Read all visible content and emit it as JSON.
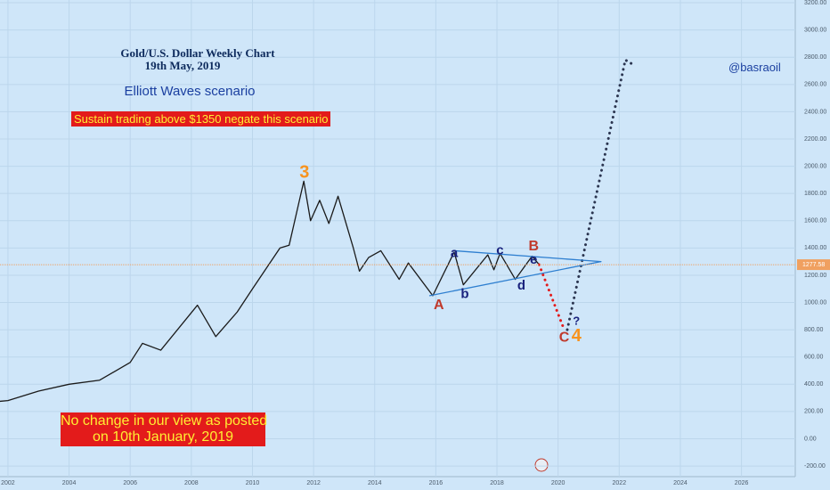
{
  "chart_data": {
    "type": "line",
    "title": "Gold/U.S. Dollar Weekly Chart",
    "date_line": "19th May, 2019",
    "subtitle": "Elliott Waves scenario",
    "warning": "Sustain trading above $1350 negate this scenario",
    "author": "@basraoil",
    "note": [
      "No change in our view as posted",
      "on 10th January, 2019"
    ],
    "xlim": [
      2001.74,
      2027.76
    ],
    "ylim": [
      -278,
      3220
    ],
    "xticks": [
      2002,
      2004,
      2006,
      2008,
      2010,
      2012,
      2014,
      2016,
      2018,
      2020,
      2022,
      2024,
      2026
    ],
    "yticks": [
      {
        "value": -200,
        "label": "-200.00"
      },
      {
        "value": 0,
        "label": "0.00"
      },
      {
        "value": 200,
        "label": "200.00"
      },
      {
        "value": 400,
        "label": "400.00"
      },
      {
        "value": 600,
        "label": "600.00"
      },
      {
        "value": 800,
        "label": "800.00"
      },
      {
        "value": 1000,
        "label": "1000.00"
      },
      {
        "value": 1200,
        "label": "1200.00"
      },
      {
        "value": 1400,
        "label": "1400.00"
      },
      {
        "value": 1600,
        "label": "1600.00"
      },
      {
        "value": 1800,
        "label": "1800.00"
      },
      {
        "value": 2000,
        "label": "2000.00"
      },
      {
        "value": 2200,
        "label": "2200.00"
      },
      {
        "value": 2400,
        "label": "2400.00"
      },
      {
        "value": 2600,
        "label": "2600.00"
      },
      {
        "value": 2800,
        "label": "2800.00"
      },
      {
        "value": 3000,
        "label": "3000.00"
      },
      {
        "value": 3200,
        "label": "3200.00"
      }
    ],
    "grid": true,
    "last_price": 1277.58,
    "last_price_color": "#f0a060",
    "series": [
      {
        "color": "#1a1a1a",
        "style": "solid",
        "x": [
          2001.74,
          2002,
          2003,
          2004,
          2005,
          2006,
          2006.4,
          2007,
          2008.2,
          2008.8,
          2009.5,
          2010,
          2010.9,
          2011.2,
          2011.68,
          2011.9,
          2012.2,
          2012.5,
          2012.8,
          2013.3,
          2013.5,
          2013.8,
          2014.2,
          2014.8,
          2015.1,
          2015.9,
          2016.6,
          2016.9,
          2017.7,
          2017.9,
          2018.1,
          2018.6,
          2019.15,
          2019.38
        ],
        "values": [
          275,
          280,
          350,
          400,
          430,
          560,
          700,
          650,
          980,
          750,
          930,
          1100,
          1400,
          1420,
          1890,
          1600,
          1750,
          1580,
          1780,
          1400,
          1230,
          1330,
          1380,
          1170,
          1290,
          1050,
          1370,
          1130,
          1350,
          1240,
          1360,
          1170,
          1340,
          1277.58
        ]
      },
      {
        "color": "#e31b1b",
        "style": "dotted",
        "x": [
          2019.38,
          2020.2
        ],
        "values": [
          1277.58,
          800
        ]
      },
      {
        "color": "#2b3550",
        "style": "dotted",
        "x": [
          2020.3,
          2022.2,
          2022.5
        ],
        "values": [
          800,
          2780,
          2740
        ]
      },
      {
        "color": "#2e7fd0",
        "style": "solid",
        "x": [
          2016.6,
          2021.4
        ],
        "values": [
          1380,
          1300
        ]
      },
      {
        "color": "#2e7fd0",
        "style": "solid",
        "x": [
          2015.8,
          2021.4
        ],
        "values": [
          1050,
          1300
        ]
      }
    ],
    "annotations": [
      {
        "text": "3",
        "x": 2011.7,
        "y": 1950,
        "color": "#f7931e",
        "size": 20
      },
      {
        "text": "a",
        "x": 2016.6,
        "y": 1360,
        "color": "#1a237e",
        "size": 15
      },
      {
        "text": "b",
        "x": 2016.95,
        "y": 1060,
        "color": "#1a237e",
        "size": 15
      },
      {
        "text": "c",
        "x": 2018.1,
        "y": 1380,
        "color": "#1a237e",
        "size": 15
      },
      {
        "text": "d",
        "x": 2018.8,
        "y": 1120,
        "color": "#1a237e",
        "size": 15
      },
      {
        "text": "e",
        "x": 2019.2,
        "y": 1310,
        "color": "#1a237e",
        "size": 15
      },
      {
        "text": "A",
        "x": 2016.1,
        "y": 980,
        "color": "#c0392b",
        "size": 16
      },
      {
        "text": "B",
        "x": 2019.2,
        "y": 1410,
        "color": "#c0392b",
        "size": 16
      },
      {
        "text": "C",
        "x": 2020.2,
        "y": 740,
        "color": "#c0392b",
        "size": 16
      },
      {
        "text": "4",
        "x": 2020.6,
        "y": 750,
        "color": "#f7931e",
        "size": 20
      },
      {
        "text": "?",
        "x": 2020.6,
        "y": 860,
        "color": "#1a237e",
        "size": 13
      }
    ]
  }
}
